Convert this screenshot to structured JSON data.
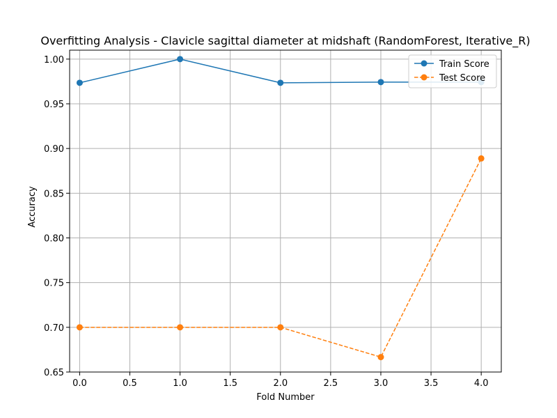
{
  "chart_data": {
    "type": "line",
    "title": "Overfitting Analysis - Clavicle sagittal diameter at midshaft (RandomForest, Iterative_R)",
    "xlabel": "Fold Number",
    "ylabel": "Accuracy",
    "xlim": [
      -0.1,
      4.2
    ],
    "ylim": [
      0.65,
      1.01
    ],
    "xticks": [
      0.0,
      0.5,
      1.0,
      1.5,
      2.0,
      2.5,
      3.0,
      3.5,
      4.0
    ],
    "xtick_labels": [
      "0.0",
      "0.5",
      "1.0",
      "1.5",
      "2.0",
      "2.5",
      "3.0",
      "3.5",
      "4.0"
    ],
    "yticks": [
      0.65,
      0.7,
      0.75,
      0.8,
      0.85,
      0.9,
      0.95,
      1.0
    ],
    "ytick_labels": [
      "0.65",
      "0.70",
      "0.75",
      "0.80",
      "0.85",
      "0.90",
      "0.95",
      "1.00"
    ],
    "grid": true,
    "legend_position": "top-right",
    "x": [
      0,
      1,
      2,
      3,
      4
    ],
    "series": [
      {
        "name": "Train Score",
        "values": [
          0.9735,
          1.0,
          0.9735,
          0.9743,
          0.9743
        ],
        "color": "#1f77b4",
        "line_style": "solid",
        "marker": "circle"
      },
      {
        "name": "Test Score",
        "values": [
          0.7,
          0.7,
          0.7,
          0.6667,
          0.8889
        ],
        "color": "#ff7f0e",
        "line_style": "dashed",
        "marker": "circle"
      }
    ]
  }
}
